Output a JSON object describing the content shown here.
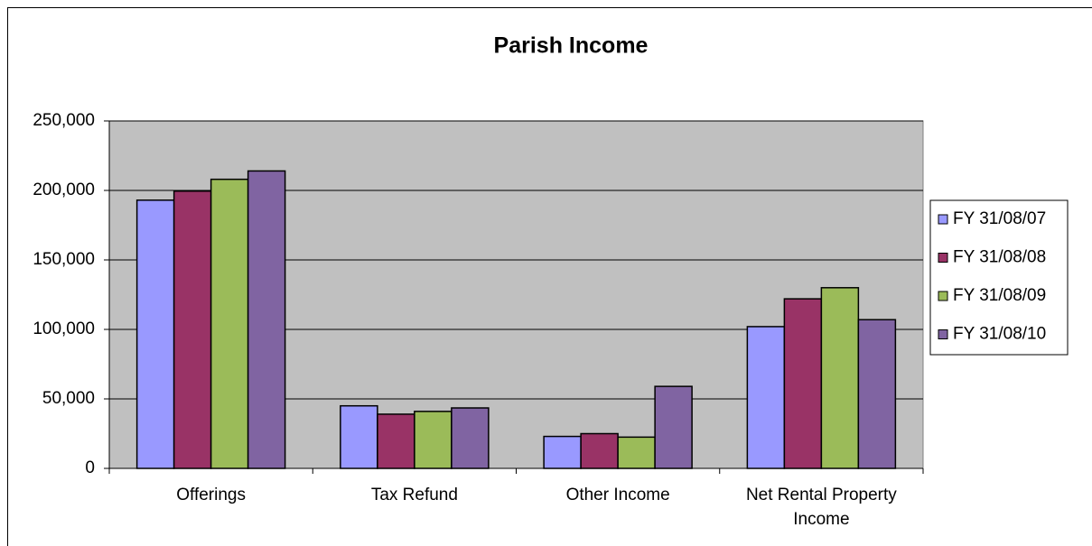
{
  "chart_data": {
    "type": "bar",
    "title": "Parish Income",
    "categories": [
      "Offerings",
      "Tax Refund",
      "Other Income",
      "Net Rental Property Income"
    ],
    "series": [
      {
        "name": "FY 31/08/07",
        "color": "#9999ff",
        "values": [
          193000,
          45000,
          23000,
          102000
        ]
      },
      {
        "name": "FY 31/08/08",
        "color": "#993366",
        "values": [
          199500,
          39000,
          25000,
          122000
        ]
      },
      {
        "name": "FY 31/08/09",
        "color": "#9bbb59",
        "values": [
          208000,
          41000,
          22500,
          130000
        ]
      },
      {
        "name": "FY 31/08/10",
        "color": "#8064a2",
        "values": [
          214000,
          43500,
          59000,
          107000
        ]
      }
    ],
    "ylim": [
      0,
      250000
    ],
    "yticks": [
      0,
      {
        "value": 50000,
        "label": "50,000"
      },
      {
        "value": 100000,
        "label": "100,000"
      },
      {
        "value": 150000,
        "label": "150,000"
      },
      {
        "value": 200000,
        "label": "200,000"
      },
      {
        "value": 250000,
        "label": "250,000"
      }
    ],
    "grid": true,
    "legend": "right",
    "plot_background": "#c0c0c0"
  }
}
